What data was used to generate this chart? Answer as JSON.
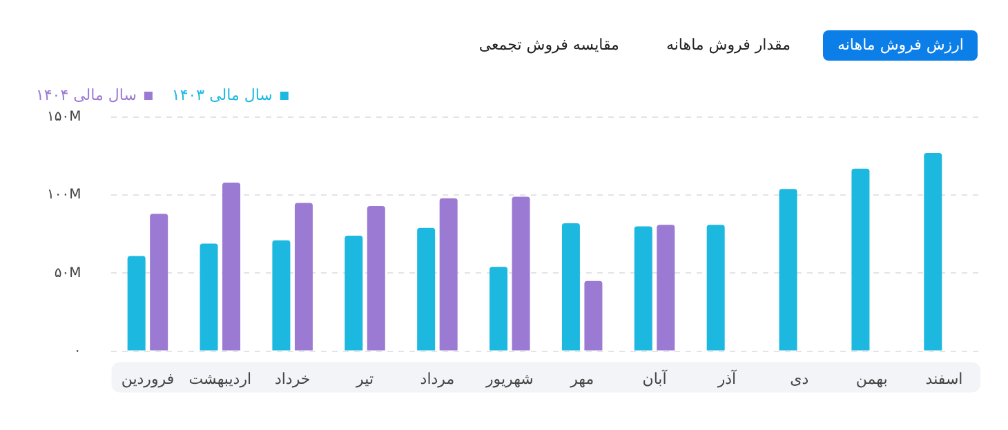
{
  "chart_data": {
    "type": "bar",
    "annotations": [
      "ارزش فروش ماهانه",
      "مقدار فروش ماهانه",
      "مقایسه فروش تجمعی"
    ],
    "categories": [
      "فروردین",
      "اردیبهشت",
      "خرداد",
      "تیر",
      "مرداد",
      "شهریور",
      "مهر",
      "آبان",
      "آذر",
      "دی",
      "بهمن",
      "اسفند"
    ],
    "series": [
      {
        "name": "سال مالی ۱۴۰۳",
        "color": "#1cb8e0",
        "values": [
          61,
          69,
          71,
          74,
          79,
          54,
          82,
          80,
          81,
          104,
          117,
          127
        ]
      },
      {
        "name": "سال مالی ۱۴۰۴",
        "color": "#9b7ad4",
        "values": [
          88,
          108,
          95,
          93,
          98,
          99,
          45,
          81,
          null,
          null,
          null,
          null
        ]
      }
    ],
    "ylim": [
      0,
      150
    ],
    "yticks": [
      {
        "value": 0,
        "label": "۰"
      },
      {
        "value": 50,
        "label": "۵۰M"
      },
      {
        "value": 100,
        "label": "۱۰۰M"
      },
      {
        "value": 150,
        "label": "۱۵۰M"
      }
    ],
    "grid": "y",
    "legend": "top left"
  }
}
